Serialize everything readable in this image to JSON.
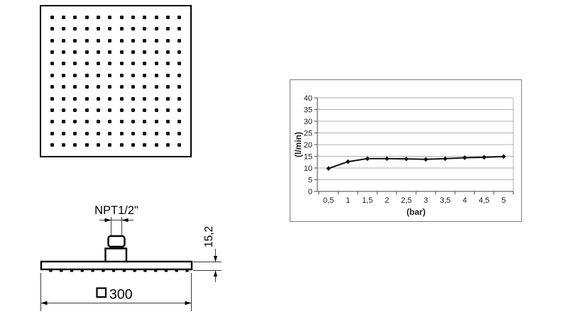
{
  "top_view": {
    "description": "square shower head face, top view",
    "nozzle_rows": 12,
    "nozzle_cols": 12
  },
  "side_view": {
    "description": "shower head side view with inlet fitting",
    "thread_label": "NPT1/2\"",
    "height_label": "15,2",
    "width_label": "300",
    "nozzle_count": 14
  },
  "colors": {
    "ink": "#000000",
    "dimension_line": "#3a3a3a",
    "grid_line": "#b0b0b0",
    "axis_line": "#666666",
    "series_line": "#111111"
  },
  "chart_data": {
    "type": "line",
    "title": "",
    "xlabel": "(bar)",
    "ylabel": "(l/min)",
    "x": [
      0.5,
      1,
      1.5,
      2,
      2.5,
      3,
      3.5,
      4,
      4.5,
      5
    ],
    "x_tick_labels": [
      "0,5",
      "1",
      "1,5",
      "2",
      "2,5",
      "3",
      "3,5",
      "4",
      "4,5",
      "5"
    ],
    "values": [
      9.8,
      12.7,
      14.0,
      14.0,
      13.9,
      13.7,
      14.0,
      14.4,
      14.6,
      14.9
    ],
    "y_ticks": [
      0,
      5,
      10,
      15,
      20,
      25,
      30,
      35,
      40
    ],
    "ylim": [
      0,
      40
    ],
    "grid": "horizontal",
    "legend": "none",
    "marker": "diamond"
  }
}
